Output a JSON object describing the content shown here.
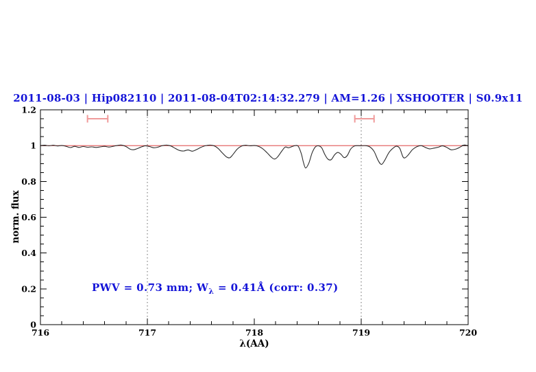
{
  "colors": {
    "accent_blue": "#1414d8",
    "spectrum_line": "#2b2b2b",
    "continuum_red": "#e05555",
    "marker_pink": "#f09a9a",
    "grid_gray": "#666666",
    "frame_black": "#000000",
    "background": "#ffffff"
  },
  "chart_data": {
    "type": "line",
    "title": "2011-08-03 | Hip082110 | 2011-08-04T02:14:32.279 | AM=1.26 | XSHOOTER | S0.9x11",
    "xlabel": "λ(AA)",
    "ylabel": "norm. flux",
    "xlim": [
      716,
      720
    ],
    "ylim": [
      0,
      1.2
    ],
    "x_tick_values": [
      716,
      717,
      718,
      719,
      720
    ],
    "x_tick_labels": [
      "716",
      "717",
      "718",
      "719",
      "720"
    ],
    "x_minor_step": 0.2,
    "y_tick_values": [
      0,
      0.2,
      0.4,
      0.6,
      0.8,
      1,
      1.2
    ],
    "y_tick_labels": [
      "0",
      "0.2",
      "0.4",
      "0.6",
      "0.8",
      "1",
      "1.2"
    ],
    "y_minor_step": 0.05,
    "grid": "vertical dotted lines only",
    "vlines": [
      717,
      719
    ],
    "continuum_y": 1.0,
    "range_markers": [
      {
        "x1": 716.44,
        "x2": 716.63,
        "y": 1.15
      },
      {
        "x1": 718.94,
        "x2": 719.12,
        "y": 1.15
      }
    ],
    "annotation_parts": {
      "prefix": "PWV = 0.73 mm; W",
      "sub": "λ",
      "suffix": " = 0.41Å (corr: 0.37)"
    },
    "series": [
      {
        "name": "spectrum",
        "points": [
          [
            716.0,
            1.0
          ],
          [
            716.04,
            1.002
          ],
          [
            716.08,
            0.999
          ],
          [
            716.12,
            1.002
          ],
          [
            716.16,
            0.998
          ],
          [
            716.2,
            1.001
          ],
          [
            716.24,
            0.996
          ],
          [
            716.28,
            0.989
          ],
          [
            716.32,
            0.996
          ],
          [
            716.36,
            0.99
          ],
          [
            716.4,
            0.995
          ],
          [
            716.44,
            0.991
          ],
          [
            716.48,
            0.993
          ],
          [
            716.52,
            0.99
          ],
          [
            716.56,
            0.993
          ],
          [
            716.6,
            0.996
          ],
          [
            716.64,
            0.992
          ],
          [
            716.68,
            0.996
          ],
          [
            716.72,
            1.001
          ],
          [
            716.76,
            1.003
          ],
          [
            716.8,
            0.995
          ],
          [
            716.84,
            0.98
          ],
          [
            716.87,
            0.977
          ],
          [
            716.9,
            0.982
          ],
          [
            716.94,
            0.992
          ],
          [
            716.98,
            0.999
          ],
          [
            717.02,
            0.995
          ],
          [
            717.06,
            0.988
          ],
          [
            717.1,
            0.992
          ],
          [
            717.14,
            1.0
          ],
          [
            717.18,
            1.003
          ],
          [
            717.22,
            0.998
          ],
          [
            717.26,
            0.985
          ],
          [
            717.3,
            0.973
          ],
          [
            717.34,
            0.97
          ],
          [
            717.38,
            0.976
          ],
          [
            717.42,
            0.969
          ],
          [
            717.46,
            0.978
          ],
          [
            717.5,
            0.99
          ],
          [
            717.54,
            0.999
          ],
          [
            717.58,
            1.003
          ],
          [
            717.62,
            1.0
          ],
          [
            717.66,
            0.985
          ],
          [
            717.7,
            0.96
          ],
          [
            717.74,
            0.937
          ],
          [
            717.77,
            0.932
          ],
          [
            717.8,
            0.95
          ],
          [
            717.84,
            0.98
          ],
          [
            717.88,
            0.997
          ],
          [
            717.92,
            1.002
          ],
          [
            717.96,
            0.999
          ],
          [
            718.0,
            1.001
          ],
          [
            718.04,
            0.996
          ],
          [
            718.08,
            0.982
          ],
          [
            718.12,
            0.96
          ],
          [
            718.16,
            0.935
          ],
          [
            718.19,
            0.925
          ],
          [
            718.22,
            0.938
          ],
          [
            718.26,
            0.972
          ],
          [
            718.29,
            0.992
          ],
          [
            718.32,
            0.988
          ],
          [
            718.35,
            0.994
          ],
          [
            718.38,
            1.0
          ],
          [
            718.41,
            0.997
          ],
          [
            718.44,
            0.955
          ],
          [
            718.46,
            0.905
          ],
          [
            718.48,
            0.875
          ],
          [
            718.51,
            0.902
          ],
          [
            718.54,
            0.958
          ],
          [
            718.57,
            0.992
          ],
          [
            718.6,
            0.999
          ],
          [
            718.63,
            0.988
          ],
          [
            718.66,
            0.95
          ],
          [
            718.69,
            0.924
          ],
          [
            718.72,
            0.922
          ],
          [
            718.75,
            0.948
          ],
          [
            718.78,
            0.962
          ],
          [
            718.81,
            0.952
          ],
          [
            718.84,
            0.933
          ],
          [
            718.87,
            0.945
          ],
          [
            718.9,
            0.98
          ],
          [
            718.93,
            0.996
          ],
          [
            718.96,
            1.0
          ],
          [
            719.0,
            0.999
          ],
          [
            719.04,
            1.0
          ],
          [
            719.08,
            0.993
          ],
          [
            719.12,
            0.968
          ],
          [
            719.16,
            0.915
          ],
          [
            719.19,
            0.895
          ],
          [
            719.22,
            0.918
          ],
          [
            719.26,
            0.962
          ],
          [
            719.3,
            0.987
          ],
          [
            719.33,
            0.997
          ],
          [
            719.36,
            0.985
          ],
          [
            719.39,
            0.938
          ],
          [
            719.41,
            0.932
          ],
          [
            719.44,
            0.948
          ],
          [
            719.48,
            0.978
          ],
          [
            719.52,
            0.994
          ],
          [
            719.56,
            1.0
          ],
          [
            719.6,
            0.99
          ],
          [
            719.64,
            0.982
          ],
          [
            719.68,
            0.986
          ],
          [
            719.72,
            0.991
          ],
          [
            719.76,
            0.999
          ],
          [
            719.8,
            0.99
          ],
          [
            719.84,
            0.977
          ],
          [
            719.88,
            0.98
          ],
          [
            719.92,
            0.99
          ],
          [
            719.96,
            1.003
          ],
          [
            720.0,
            0.999
          ]
        ]
      }
    ]
  }
}
